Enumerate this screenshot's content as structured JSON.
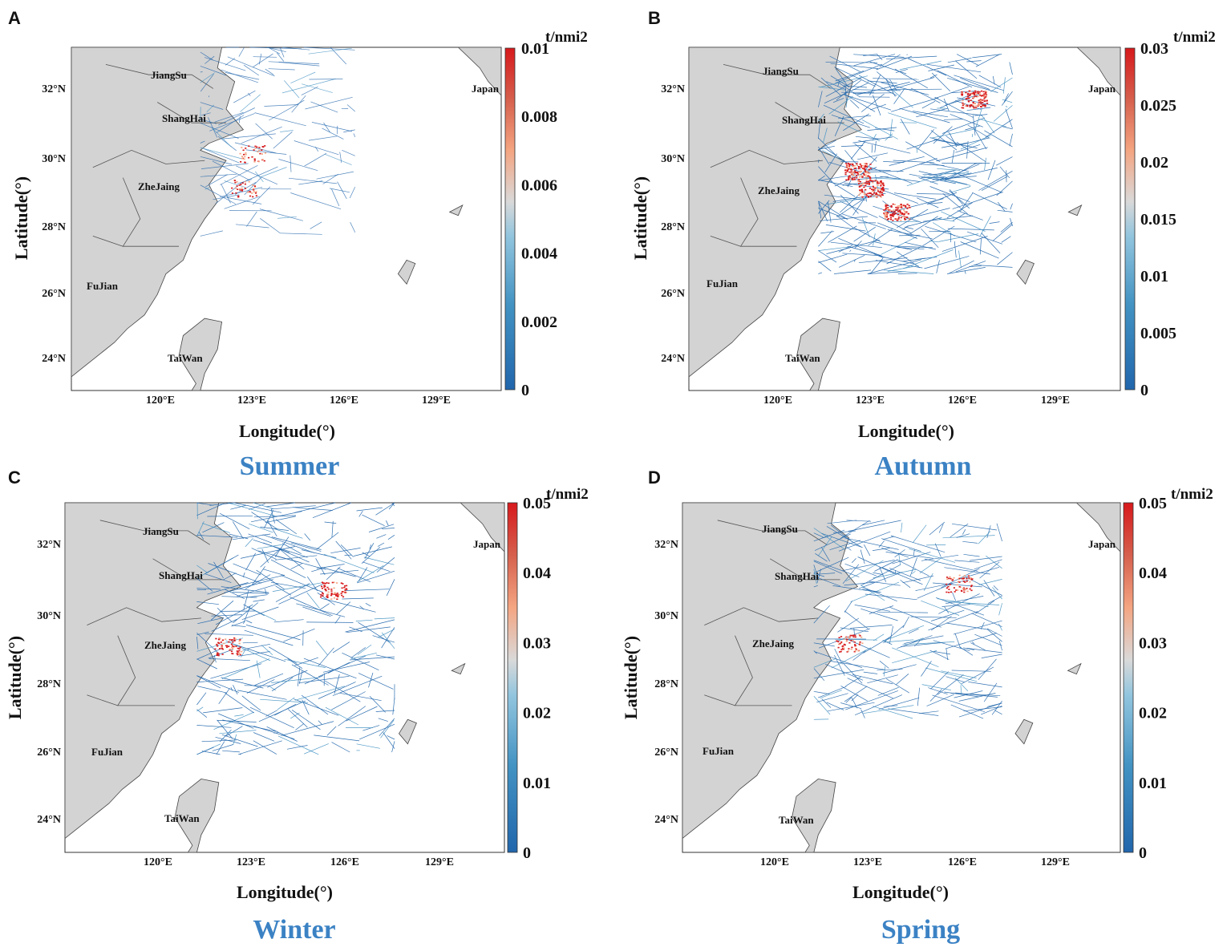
{
  "figure": {
    "colorbar_unit": "t/nmi2",
    "lon_ticks": [
      "120°E",
      "123°E",
      "126°E",
      "129°E"
    ],
    "lat_ticks": [
      "32°N",
      "30°N",
      "28°N",
      "26°N",
      "24°N"
    ],
    "xlabel": "Longitude(°)",
    "ylabel": "Latitude(°)",
    "land_color": "#d3d3d3",
    "colormap": [
      "#2166ac",
      "#4393c3",
      "#92c5de",
      "#d1e5f0",
      "#f4a582",
      "#d6604d",
      "#d7191c"
    ]
  },
  "panels": [
    {
      "letter": "A",
      "season": "Summer",
      "colorbar_ticks": [
        "0.01",
        "0.008",
        "0.006",
        "0.004",
        "0.002",
        "0"
      ],
      "places": {
        "jiangsu": "JiangSu",
        "shanghai": "ShangHai",
        "zhejiang": "ZheJaing",
        "fujian": "FuJian",
        "taiwan": "TaiWan",
        "japan": "Japan"
      }
    },
    {
      "letter": "B",
      "season": "Autumn",
      "colorbar_ticks": [
        "0.03",
        "0.025",
        "0.02",
        "0.015",
        "0.01",
        "0.005",
        "0"
      ],
      "places": {
        "jiangsu": "JiangSu",
        "shanghai": "ShangHai",
        "zhejiang": "ZheJaing",
        "fujian": "FuJian",
        "taiwan": "TaiWan",
        "japan": "Japan"
      }
    },
    {
      "letter": "C",
      "season": "Winter",
      "colorbar_ticks": [
        "0.05",
        "0.04",
        "0.03",
        "0.02",
        "0.01",
        "0"
      ],
      "places": {
        "jiangsu": "JiangSu",
        "shanghai": "ShangHai",
        "zhejiang": "ZheJaing",
        "fujian": "FuJian",
        "taiwan": "TaiWan",
        "japan": "Japan"
      }
    },
    {
      "letter": "D",
      "season": "Spring",
      "colorbar_ticks": [
        "0.05",
        "0.04",
        "0.03",
        "0.02",
        "0.01",
        "0"
      ],
      "places": {
        "jiangsu": "JiangSu",
        "shanghai": "ShangHai",
        "zhejiang": "ZheJaing",
        "fujian": "FuJian",
        "taiwan": "TaiWan",
        "japan": "Japan"
      }
    }
  ]
}
